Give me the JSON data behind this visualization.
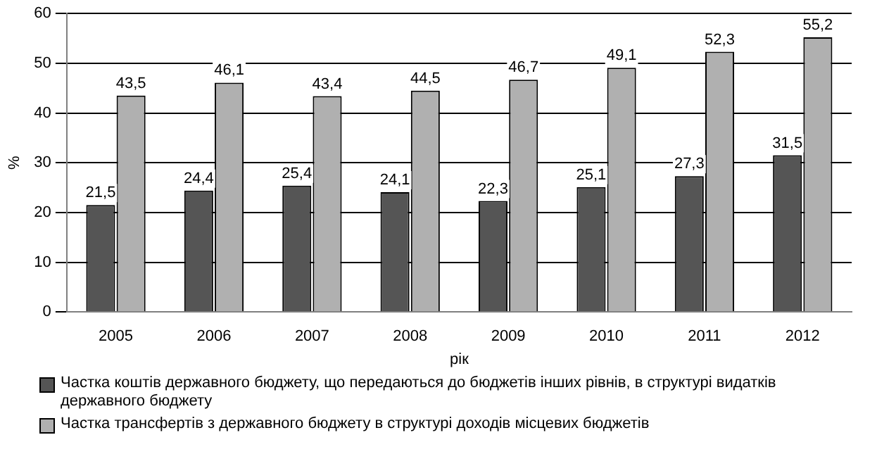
{
  "chart_data": {
    "type": "bar",
    "xlabel": "рік",
    "ylabel": "%",
    "categories": [
      "2005",
      "2006",
      "2007",
      "2008",
      "2009",
      "2010",
      "2011",
      "2012"
    ],
    "series": [
      {
        "name": "Частка коштів державного бюджету, що передаються до бюджетів інших рівнів, в структурі видатків державного бюджету",
        "color": "#555555",
        "values": [
          21.5,
          24.4,
          25.4,
          24.1,
          22.3,
          25.1,
          27.3,
          31.5
        ],
        "value_labels": [
          "21,5",
          "24,4",
          "25,4",
          "24,1",
          "22,3",
          "25,1",
          "27,3",
          "31,5"
        ]
      },
      {
        "name": "Частка трансфертів з державного бюджету в структурі доходів місцевих бюджетів",
        "color": "#b0b0b0",
        "values": [
          43.5,
          46.1,
          43.4,
          44.5,
          46.7,
          49.1,
          52.3,
          55.2
        ],
        "value_labels": [
          "43,5",
          "46,1",
          "43,4",
          "44,5",
          "46,7",
          "49,1",
          "52,3",
          "55,2"
        ]
      }
    ],
    "ylim": [
      0,
      60
    ],
    "yticks": [
      0,
      10,
      20,
      30,
      40,
      50,
      60
    ],
    "grid": "y",
    "legend": "bottom"
  }
}
